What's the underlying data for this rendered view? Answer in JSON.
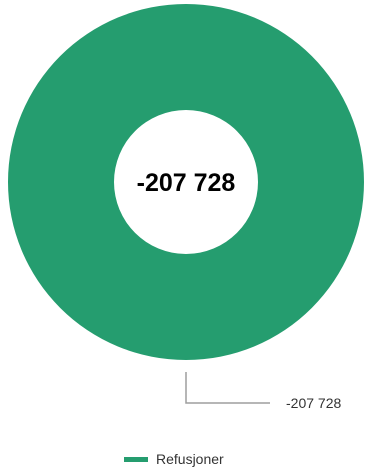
{
  "chart_data": {
    "type": "pie",
    "style": "donut",
    "slices": [
      {
        "label": "Refusjoner",
        "value": -207728,
        "display": "-207 728",
        "color": "#259d6f"
      }
    ],
    "center_total": "-207 728",
    "legend": {
      "position": "bottom-center",
      "items": [
        {
          "label": "Refusjoner",
          "color": "#259d6f"
        }
      ]
    },
    "annotation_line_color": "#9e9e9e",
    "grid": false
  }
}
